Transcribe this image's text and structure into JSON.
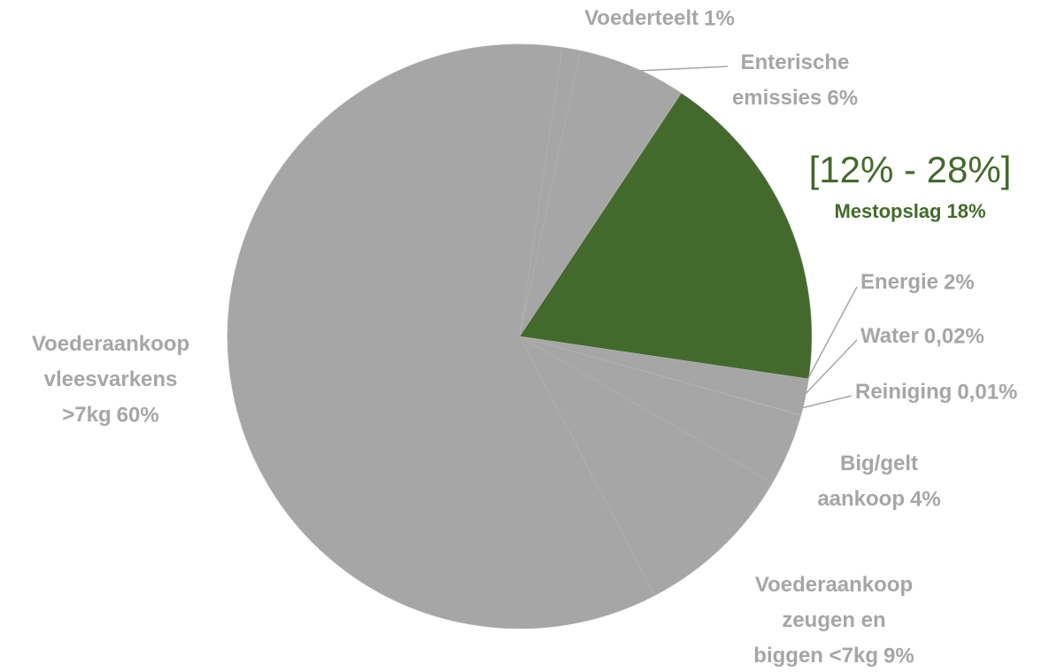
{
  "chart_data": {
    "type": "pie",
    "categories": [
      "Voederteelt",
      "Enterische emissies",
      "Mestopslag",
      "Energie",
      "Water",
      "Reiniging",
      "Big/gelt aankoop",
      "Voederaankoop zeugen en biggen <7kg",
      "Voederaankoop vleesvarkens >7kg"
    ],
    "values": [
      1,
      6,
      18,
      2,
      0.02,
      0.01,
      4,
      9,
      60
    ],
    "value_labels": [
      "1%",
      "6%",
      "18%",
      "2%",
      "0,02%",
      "0,01%",
      "4%",
      "9%",
      "60%"
    ],
    "colors": [
      "#a6a6a6",
      "#a6a6a6",
      "#436a2c",
      "#a6a6a6",
      "#a6a6a6",
      "#a6a6a6",
      "#a6a6a6",
      "#a6a6a6",
      "#a6a6a6"
    ],
    "annotation": "[12% - 28%]"
  }
}
